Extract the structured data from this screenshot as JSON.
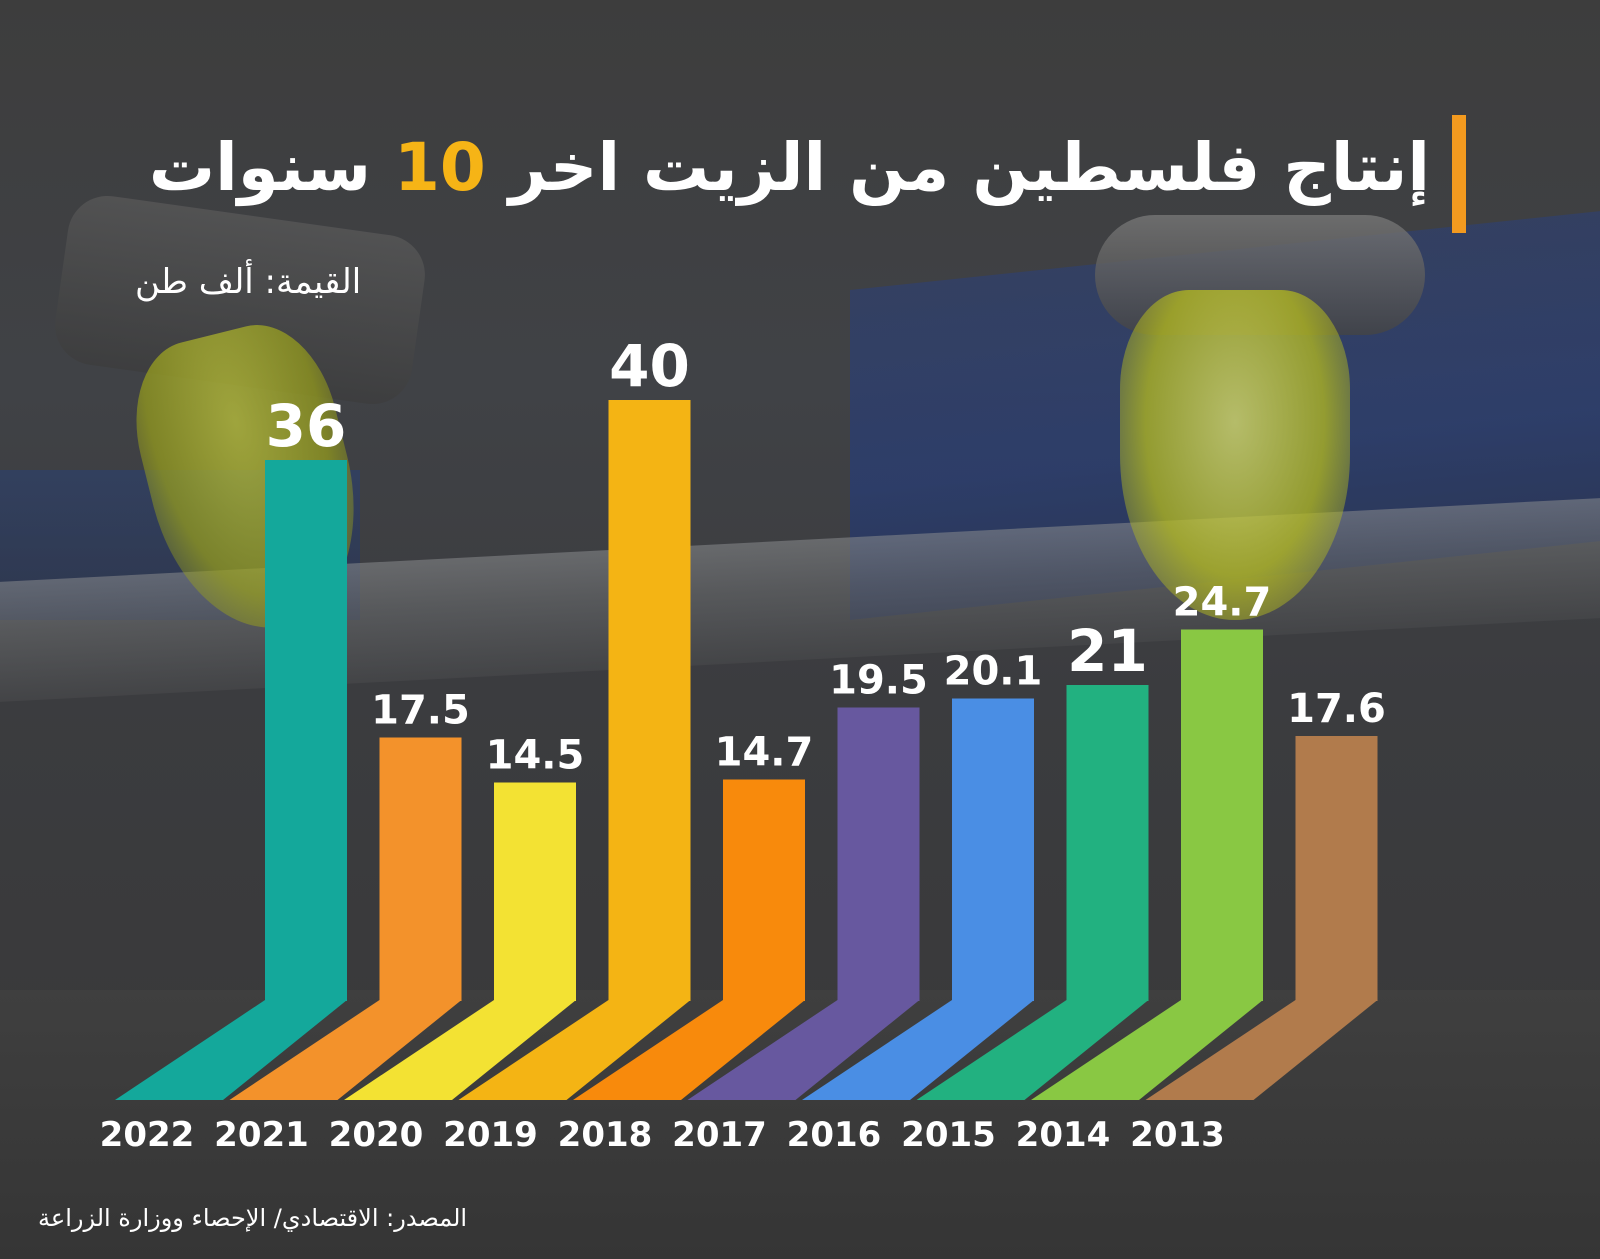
{
  "title": {
    "prefix": "إنتاج فلسطين من الزيت اخر",
    "number": "10",
    "suffix": "سنوات"
  },
  "unit_label": "القيمة: ألف طن",
  "source": "المصدر: الاقتصادي/ الإحصاء ووزارة الزراعة",
  "colors": {
    "accent": "#f39a1f",
    "title_number": "#f6b416"
  },
  "chart_data": {
    "type": "bar",
    "categories": [
      "2022",
      "2021",
      "2020",
      "2019",
      "2018",
      "2017",
      "2016",
      "2015",
      "2014",
      "2013"
    ],
    "values": [
      36,
      17.5,
      14.5,
      40,
      14.7,
      19.5,
      20.1,
      21,
      24.7,
      17.6
    ],
    "value_labels": [
      "36",
      "17.5",
      "14.5",
      "40",
      "14.7",
      "19.5",
      "20.1",
      "21",
      "24.7",
      "17.6"
    ],
    "bar_colors": [
      "#14a89b",
      "#f3922b",
      "#f3e233",
      "#f4b414",
      "#f88a0c",
      "#67589f",
      "#4a8ee4",
      "#22b180",
      "#89c843",
      "#b17b4c"
    ],
    "ylim": [
      0,
      40
    ],
    "xlabel": "",
    "ylabel": "",
    "grid": false
  }
}
